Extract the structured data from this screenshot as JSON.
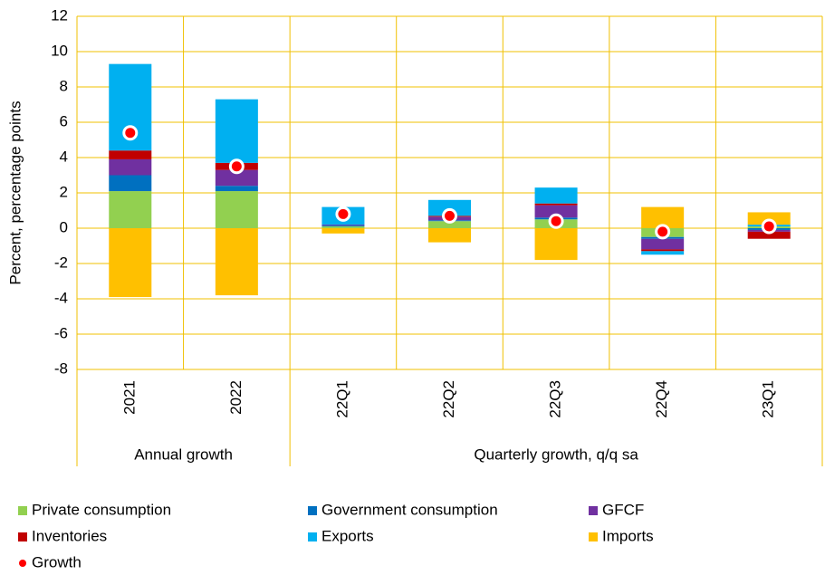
{
  "chart_data": {
    "type": "stacked-bar",
    "y_label": "Percent, percentage points",
    "groups": [
      {
        "name": "Annual growth",
        "categories": [
          "2021",
          "2022"
        ]
      },
      {
        "name": "Quarterly growth, q/q sa",
        "categories": [
          "22Q1",
          "22Q2",
          "22Q3",
          "22Q4",
          "23Q1"
        ]
      }
    ],
    "series": [
      {
        "name": "Private consumption",
        "color": "#92d050",
        "values": [
          2.1,
          2.1,
          0.1,
          0.4,
          0.5,
          -0.5,
          0.1
        ]
      },
      {
        "name": "Government consumption",
        "color": "#0070c0",
        "values": [
          0.9,
          0.3,
          0.05,
          0.05,
          0.1,
          -0.1,
          -0.1
        ]
      },
      {
        "name": "GFCF",
        "color": "#7030a0",
        "values": [
          0.9,
          0.9,
          0.05,
          0.2,
          0.7,
          -0.6,
          -0.1
        ]
      },
      {
        "name": "Inventories",
        "color": "#c00000",
        "values": [
          0.5,
          0.4,
          0,
          0.05,
          0.1,
          -0.1,
          -0.4
        ]
      },
      {
        "name": "Exports",
        "color": "#00b0f0",
        "values": [
          4.9,
          3.6,
          1.0,
          0.9,
          0.9,
          -0.2,
          0.1
        ]
      },
      {
        "name": "Imports",
        "color": "#ffc000",
        "values": [
          -3.9,
          -3.8,
          -0.3,
          -0.8,
          -1.8,
          1.2,
          0.7
        ]
      }
    ],
    "growth": {
      "name": "Growth",
      "color": "#ff0000",
      "values": [
        5.4,
        3.5,
        0.8,
        0.7,
        0.4,
        -0.2,
        0.1
      ]
    },
    "ylim": [
      -8,
      12
    ],
    "yticks": [
      -8,
      -6,
      -4,
      -2,
      0,
      2,
      4,
      6,
      8,
      10,
      12
    ],
    "grid": true
  }
}
